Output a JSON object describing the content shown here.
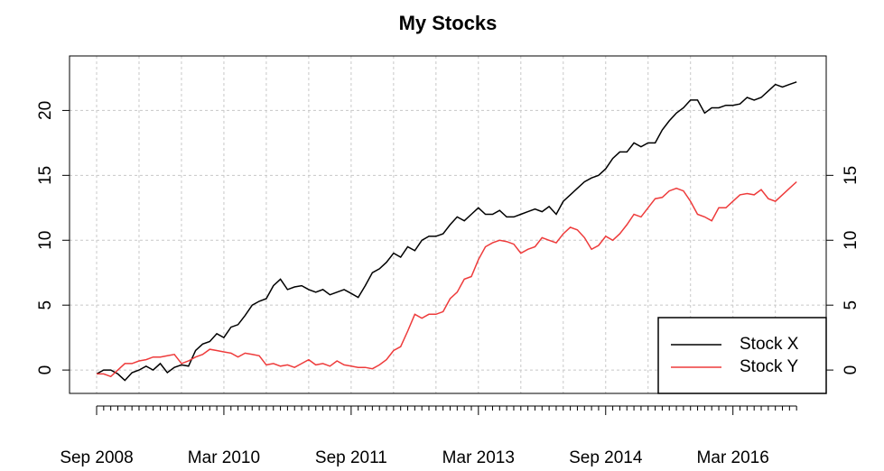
{
  "chart_data": {
    "type": "line",
    "title": "My Stocks",
    "categories": [
      "Sep 2008",
      null,
      null,
      null,
      null,
      null,
      null,
      null,
      null,
      null,
      null,
      null,
      null,
      null,
      null,
      null,
      null,
      null,
      "Mar 2010",
      null,
      null,
      null,
      null,
      null,
      null,
      null,
      null,
      null,
      null,
      null,
      null,
      null,
      null,
      null,
      null,
      null,
      "Sep 2011",
      null,
      null,
      null,
      null,
      null,
      null,
      null,
      null,
      null,
      null,
      null,
      null,
      null,
      null,
      null,
      null,
      null,
      "Mar 2013",
      null,
      null,
      null,
      null,
      null,
      null,
      null,
      null,
      null,
      null,
      null,
      null,
      null,
      null,
      null,
      null,
      null,
      "Sep 2014",
      null,
      null,
      null,
      null,
      null,
      null,
      null,
      null,
      null,
      null,
      null,
      null,
      null,
      null,
      null,
      null,
      null,
      "Mar 2016",
      null,
      null,
      null,
      null,
      null,
      null,
      null,
      null,
      null
    ],
    "series": [
      {
        "name": "Stock X",
        "color": "#000000",
        "values": [
          -0.3,
          0,
          0,
          -0.3,
          -0.8,
          -0.2,
          0,
          0.3,
          0,
          0.5,
          -0.2,
          0.2,
          0.4,
          0.3,
          1.5,
          2,
          2.2,
          2.8,
          2.5,
          3.3,
          3.5,
          4.2,
          5,
          5.3,
          5.5,
          6.5,
          7,
          6.2,
          6.4,
          6.5,
          6.2,
          6,
          6.2,
          5.8,
          6,
          6.2,
          5.9,
          5.6,
          6.5,
          7.5,
          7.8,
          8.3,
          9,
          8.7,
          9.5,
          9.2,
          10,
          10.3,
          10.3,
          10.5,
          11.2,
          11.8,
          11.5,
          12,
          12.5,
          12,
          12,
          12.3,
          11.8,
          11.8,
          12,
          12.2,
          12.4,
          12.2,
          12.6,
          12,
          13,
          13.5,
          14,
          14.5,
          14.8,
          15,
          15.5,
          16.3,
          16.8,
          16.8,
          17.5,
          17.2,
          17.5,
          17.5,
          18.5,
          19.2,
          19.8,
          20.2,
          20.8,
          20.8,
          19.8,
          20.2,
          20.2,
          20.4,
          20.4,
          20.5,
          21,
          20.8,
          21,
          21.5,
          22,
          21.8,
          22,
          22.2
        ]
      },
      {
        "name": "Stock Y",
        "color": "#ee3b3b",
        "values": [
          -0.3,
          -0.3,
          -0.5,
          0,
          0.5,
          0.5,
          0.7,
          0.8,
          1,
          1,
          1.1,
          1.2,
          0.5,
          0.7,
          1,
          1.2,
          1.6,
          1.5,
          1.4,
          1.3,
          1,
          1.3,
          1.2,
          1.1,
          0.4,
          0.5,
          0.3,
          0.4,
          0.2,
          0.5,
          0.8,
          0.4,
          0.5,
          0.3,
          0.7,
          0.4,
          0.3,
          0.2,
          0.2,
          0.1,
          0.4,
          0.8,
          1.5,
          1.8,
          3,
          4.3,
          4,
          4.3,
          4.3,
          4.5,
          5.5,
          6,
          7,
          7.2,
          8.5,
          9.5,
          9.8,
          10,
          9.9,
          9.7,
          9,
          9.3,
          9.5,
          10.2,
          10,
          9.8,
          10.5,
          11,
          10.8,
          10.2,
          9.3,
          9.6,
          10.3,
          10,
          10.5,
          11.2,
          12,
          11.8,
          12.5,
          13.2,
          13.3,
          13.8,
          14,
          13.8,
          13,
          12,
          11.8,
          11.5,
          12.5,
          12.5,
          13,
          13.5,
          13.6,
          13.5,
          13.9,
          13.2,
          13,
          13.5,
          14,
          14.5
        ]
      }
    ],
    "ylim": [
      -1.8,
      24.2
    ],
    "yticks": [
      0,
      5,
      10,
      15,
      20
    ],
    "y2lim": [
      -1.8,
      24.2
    ],
    "y2ticks": [
      0,
      5,
      10,
      15
    ],
    "grid": true,
    "legend": "bottomright"
  }
}
